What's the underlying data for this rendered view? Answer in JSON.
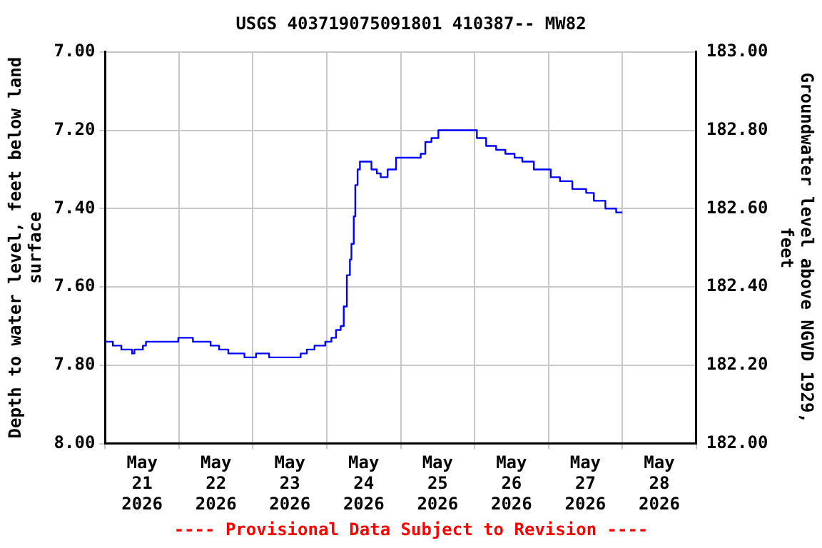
{
  "chart_data": {
    "type": "step",
    "title": "USGS 403719075091801 410387-- MW82",
    "xlabel": null,
    "ylabel": "Depth to water level, feet below land surface",
    "y2label": "Groundwater level above NGVD 1929, feet",
    "annotations": [
      "---- Provisional Data Subject to Revision ----"
    ],
    "x": [
      "2026-05-21T00:00",
      "2026-05-21T02:30",
      "2026-05-21T05:15",
      "2026-05-21T08:45",
      "2026-05-21T09:30",
      "2026-05-21T12:15",
      "2026-05-21T13:15",
      "2026-05-21T23:45",
      "2026-05-22T04:30",
      "2026-05-22T10:15",
      "2026-05-22T13:00",
      "2026-05-22T16:00",
      "2026-05-22T21:15",
      "2026-05-23T01:00",
      "2026-05-23T05:15",
      "2026-05-23T15:30",
      "2026-05-23T17:30",
      "2026-05-23T20:00",
      "2026-05-23T23:30",
      "2026-05-24T01:30",
      "2026-05-24T03:00",
      "2026-05-24T04:30",
      "2026-05-24T05:30",
      "2026-05-24T06:30",
      "2026-05-24T07:30",
      "2026-05-24T08:00",
      "2026-05-24T08:45",
      "2026-05-24T09:15",
      "2026-05-24T10:00",
      "2026-05-24T10:45",
      "2026-05-24T12:45",
      "2026-05-24T14:30",
      "2026-05-24T16:15",
      "2026-05-24T17:30",
      "2026-05-24T19:45",
      "2026-05-24T22:30",
      "2026-05-25T04:30",
      "2026-05-25T06:30",
      "2026-05-25T08:00",
      "2026-05-25T10:00",
      "2026-05-25T12:15",
      "2026-05-25T20:00",
      "2026-05-25T23:15",
      "2026-05-26T00:45",
      "2026-05-26T03:45",
      "2026-05-26T07:00",
      "2026-05-26T10:00",
      "2026-05-26T13:00",
      "2026-05-26T15:30",
      "2026-05-26T19:15",
      "2026-05-27T00:45",
      "2026-05-27T03:45",
      "2026-05-27T07:45",
      "2026-05-27T12:15",
      "2026-05-27T14:45",
      "2026-05-27T18:30",
      "2026-05-27T22:00",
      "2026-05-28T00:00"
    ],
    "series": [
      {
        "color": "#0000ff",
        "values": [
          7.74,
          7.75,
          7.76,
          7.77,
          7.76,
          7.75,
          7.74,
          7.73,
          7.74,
          7.75,
          7.76,
          7.77,
          7.78,
          7.77,
          7.78,
          7.77,
          7.76,
          7.75,
          7.74,
          7.73,
          7.71,
          7.7,
          7.65,
          7.57,
          7.53,
          7.49,
          7.42,
          7.34,
          7.3,
          7.28,
          7.28,
          7.3,
          7.31,
          7.32,
          7.3,
          7.27,
          7.27,
          7.26,
          7.23,
          7.22,
          7.2,
          7.2,
          7.2,
          7.22,
          7.24,
          7.25,
          7.26,
          7.27,
          7.28,
          7.3,
          7.32,
          7.33,
          7.35,
          7.36,
          7.38,
          7.4,
          7.41,
          7.41
        ]
      }
    ],
    "xlim": [
      "2026-05-21T00:00",
      "2026-05-29T00:00"
    ],
    "xticks": [
      {
        "value": "2026-05-21T00:00",
        "label": null
      },
      {
        "value": "2026-05-21T12:00",
        "label": "May 21 2026"
      },
      {
        "value": "2026-05-22T00:00",
        "label": null
      },
      {
        "value": "2026-05-22T12:00",
        "label": "May 22 2026"
      },
      {
        "value": "2026-05-23T00:00",
        "label": null
      },
      {
        "value": "2026-05-23T12:00",
        "label": "May 23 2026"
      },
      {
        "value": "2026-05-24T00:00",
        "label": null
      },
      {
        "value": "2026-05-24T12:00",
        "label": "May 24 2026"
      },
      {
        "value": "2026-05-25T00:00",
        "label": null
      },
      {
        "value": "2026-05-25T12:00",
        "label": "May 25 2026"
      },
      {
        "value": "2026-05-26T00:00",
        "label": null
      },
      {
        "value": "2026-05-26T12:00",
        "label": "May 26 2026"
      },
      {
        "value": "2026-05-27T00:00",
        "label": null
      },
      {
        "value": "2026-05-27T12:00",
        "label": "May 27 2026"
      },
      {
        "value": "2026-05-28T00:00",
        "label": null
      },
      {
        "value": "2026-05-28T12:00",
        "label": "May 28 2026"
      },
      {
        "value": "2026-05-29T00:00",
        "label": null
      }
    ],
    "ylim": [
      8,
      7
    ],
    "yticks": [
      {
        "value": 7,
        "label": "7.00"
      },
      {
        "value": 7.2,
        "label": "7.20"
      },
      {
        "value": 7.4,
        "label": "7.40"
      },
      {
        "value": 7.6,
        "label": "7.60"
      },
      {
        "value": 7.8,
        "label": "7.80"
      },
      {
        "value": 8,
        "label": "8.00"
      }
    ],
    "y2lim": [
      182,
      183
    ],
    "y2ticks": [
      {
        "value": 182,
        "label": "182.00"
      },
      {
        "value": 182.2,
        "label": "182.20"
      },
      {
        "value": 182.4,
        "label": "182.40"
      },
      {
        "value": 182.6,
        "label": "182.60"
      },
      {
        "value": 182.8,
        "label": "182.80"
      },
      {
        "value": 183,
        "label": "183.00"
      }
    ],
    "grid": true
  }
}
